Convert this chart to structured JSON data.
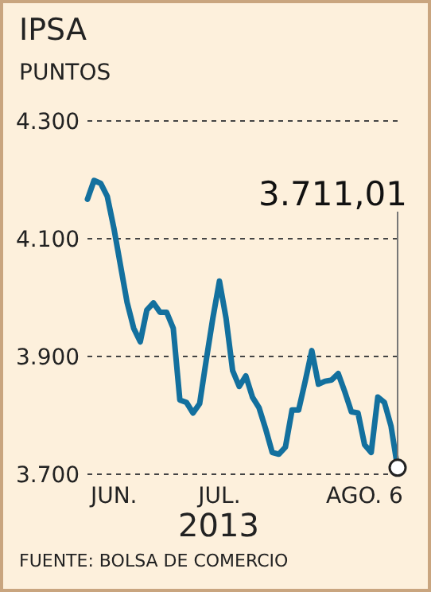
{
  "chart_data": {
    "type": "line",
    "title": "IPSA",
    "subtitle": "PUNTOS",
    "xlabel": "2013",
    "categories": [
      null,
      null,
      null,
      null,
      "JUN.",
      null,
      null,
      null,
      null,
      null,
      null,
      null,
      null,
      null,
      null,
      null,
      null,
      null,
      null,
      null,
      "JUL.",
      null,
      null,
      null,
      null,
      null,
      null,
      null,
      null,
      null,
      null,
      null,
      null,
      null,
      null,
      null,
      null,
      null,
      null,
      null,
      null,
      null,
      "AGO. 6",
      null,
      null,
      null,
      null,
      null
    ],
    "series": [
      {
        "color": "#13709e",
        "values": [
          4167,
          4199,
          4194,
          4172,
          4118,
          4055,
          3992,
          3948,
          3925,
          3979,
          3991,
          3975,
          3975,
          3948,
          3826,
          3822,
          3804,
          3820,
          3894,
          3965,
          4028,
          3965,
          3876,
          3849,
          3867,
          3831,
          3813,
          3777,
          3737,
          3734,
          3746,
          3809,
          3809,
          3858,
          3910,
          3853,
          3858,
          3860,
          3871,
          3840,
          3806,
          3804,
          3750,
          3737,
          3831,
          3822,
          3782,
          3711.01
        ]
      }
    ],
    "ylim": [
      3700,
      4300
    ],
    "yticks": [
      {
        "value": 3700,
        "label": "3.700"
      },
      {
        "value": 3900,
        "label": "3.900"
      },
      {
        "value": 4100,
        "label": "4.100"
      },
      {
        "value": 4300,
        "label": "4.300"
      }
    ],
    "grid": "y",
    "marker": "none",
    "line_style": "solid",
    "annotations": [
      "3.711,01",
      "FUENTE: BOLSA DE COMERCIO"
    ]
  }
}
